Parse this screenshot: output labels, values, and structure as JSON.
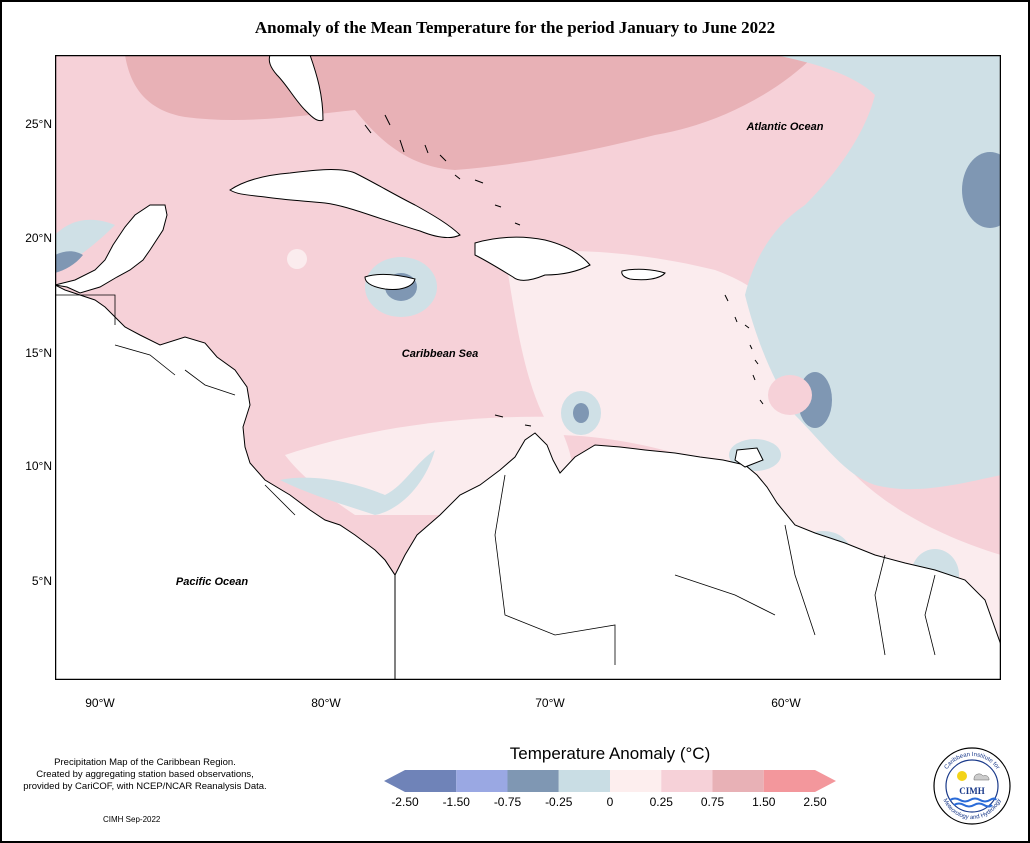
{
  "title": "Anomaly of the Mean Temperature for the period January to June 2022",
  "labels": {
    "atlantic": "Atlantic Ocean",
    "caribbean": "Caribbean Sea",
    "pacific": "Pacific Ocean"
  },
  "lat_ticks": [
    "25°N",
    "20°N",
    "15°N",
    "10°N",
    "5°N"
  ],
  "lon_ticks": [
    "90°W",
    "80°W",
    "70°W",
    "60°W"
  ],
  "credit": {
    "line1": "Precipitation Map of the Caribbean Region.",
    "line2": "Created by aggregating station based observations,",
    "line3": "provided by CariCOF, with NCEP/NCAR Reanalysis Data.",
    "stamp": "CIMH Sep-2022"
  },
  "legend": {
    "title": "Temperature Anomaly (°C)",
    "labels": [
      "-2.50",
      "-1.50",
      "-0.75",
      "-0.25",
      "0",
      "0.25",
      "0.75",
      "1.50",
      "2.50"
    ],
    "colors": [
      "#6f83b8",
      "#9aa8e3",
      "#7f97b3",
      "#c9dde4",
      "#fdeeee",
      "#f6d1d8",
      "#e8b1b6",
      "#f3979c"
    ]
  },
  "logo": {
    "name": "CIMH",
    "ring_text_top": "Caribbean Institute for",
    "ring_text_bottom": "Meteorology and Hydrology"
  },
  "colors": {
    "warm_light": "#fbecee",
    "warm": "#f6d1d8",
    "warm_strong": "#e8b1b6",
    "cool_light": "#cfe0e6",
    "cool": "#7f97b3"
  }
}
